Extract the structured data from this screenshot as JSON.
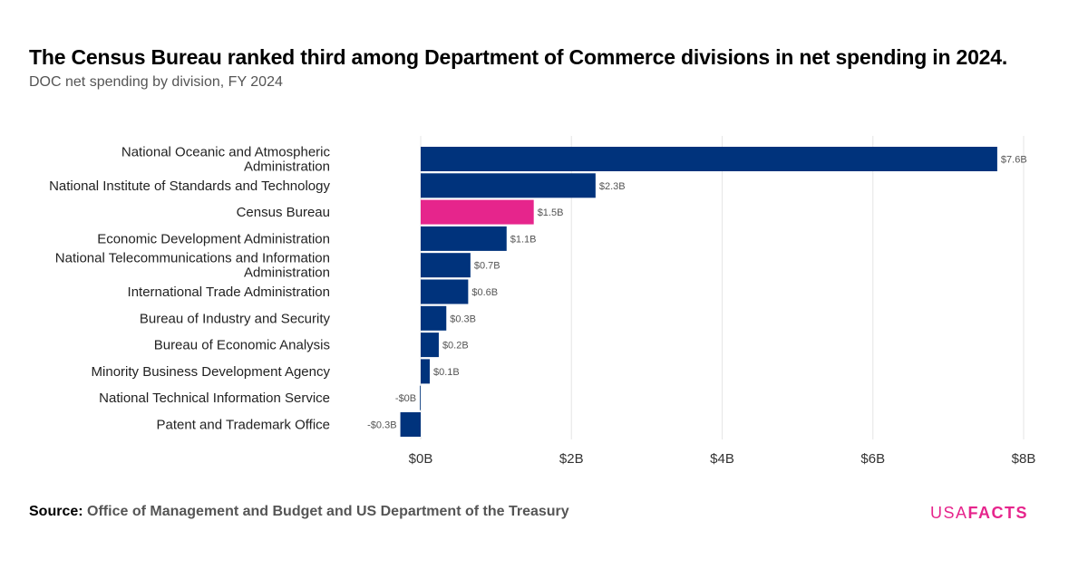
{
  "header": {
    "title": "The Census Bureau ranked third among Department of Commerce divisions in net spending in 2024.",
    "subtitle": "DOC net spending by division, FY 2024"
  },
  "footer": {
    "source_label": "Source:",
    "source_text": "Office of Management and Budget and US Department of the Treasury",
    "logo_part1": "USA",
    "logo_part2": "FACTS"
  },
  "colors": {
    "bar": "#00337c",
    "highlight": "#e6258c",
    "grid": "#e6e6e6",
    "logo": "#e6258c"
  },
  "chart_data": {
    "type": "bar",
    "orientation": "horizontal",
    "title": "The Census Bureau ranked third among Department of Commerce divisions in net spending in 2024.",
    "subtitle": "DOC net spending by division, FY 2024",
    "categories": [
      "National Oceanic and Atmospheric Administration",
      "National Institute of Standards and Technology",
      "Census Bureau",
      "Economic Development Administration",
      "National Telecommunications and Information Administration",
      "International Trade Administration",
      "Bureau of Industry and Security",
      "Bureau of Economic Analysis",
      "Minority Business Development Agency",
      "National Technical Information Service",
      "Patent and Trademark Office"
    ],
    "values": [
      7.65,
      2.32,
      1.5,
      1.14,
      0.66,
      0.63,
      0.34,
      0.24,
      0.12,
      -0.01,
      -0.27
    ],
    "value_labels": [
      "$7.6B",
      "$2.3B",
      "$1.5B",
      "$1.1B",
      "$0.7B",
      "$0.6B",
      "$0.3B",
      "$0.2B",
      "$0.1B",
      "-$0B",
      "-$0.3B"
    ],
    "highlight_index": 2,
    "xlim": [
      0,
      8
    ],
    "x_ticks": [
      0,
      2,
      4,
      6,
      8
    ],
    "x_tick_labels": [
      "$0B",
      "$2B",
      "$4B",
      "$6B",
      "$8B"
    ],
    "xlabel": "",
    "ylabel": "",
    "grid": true,
    "legend": "none"
  }
}
